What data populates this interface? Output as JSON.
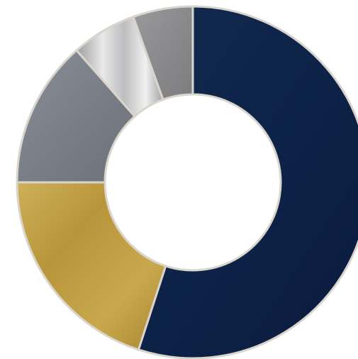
{
  "chart_data": {
    "type": "pie",
    "style": "donut",
    "title": "",
    "legend": "none",
    "slices": [
      {
        "value": 55.0,
        "color": "#0e2549",
        "fill": "navy-gradient"
      },
      {
        "value": 20.0,
        "color": "#c4a347",
        "fill": "gold-gradient"
      },
      {
        "value": 13.5,
        "color": "#7c8189",
        "fill": "slate-gradient"
      },
      {
        "value": 6.0,
        "color": "#c9c9cb",
        "fill": "silver-gradient"
      },
      {
        "value": 5.5,
        "color": "#8d8d8f",
        "fill": "gray-gradient"
      }
    ]
  }
}
